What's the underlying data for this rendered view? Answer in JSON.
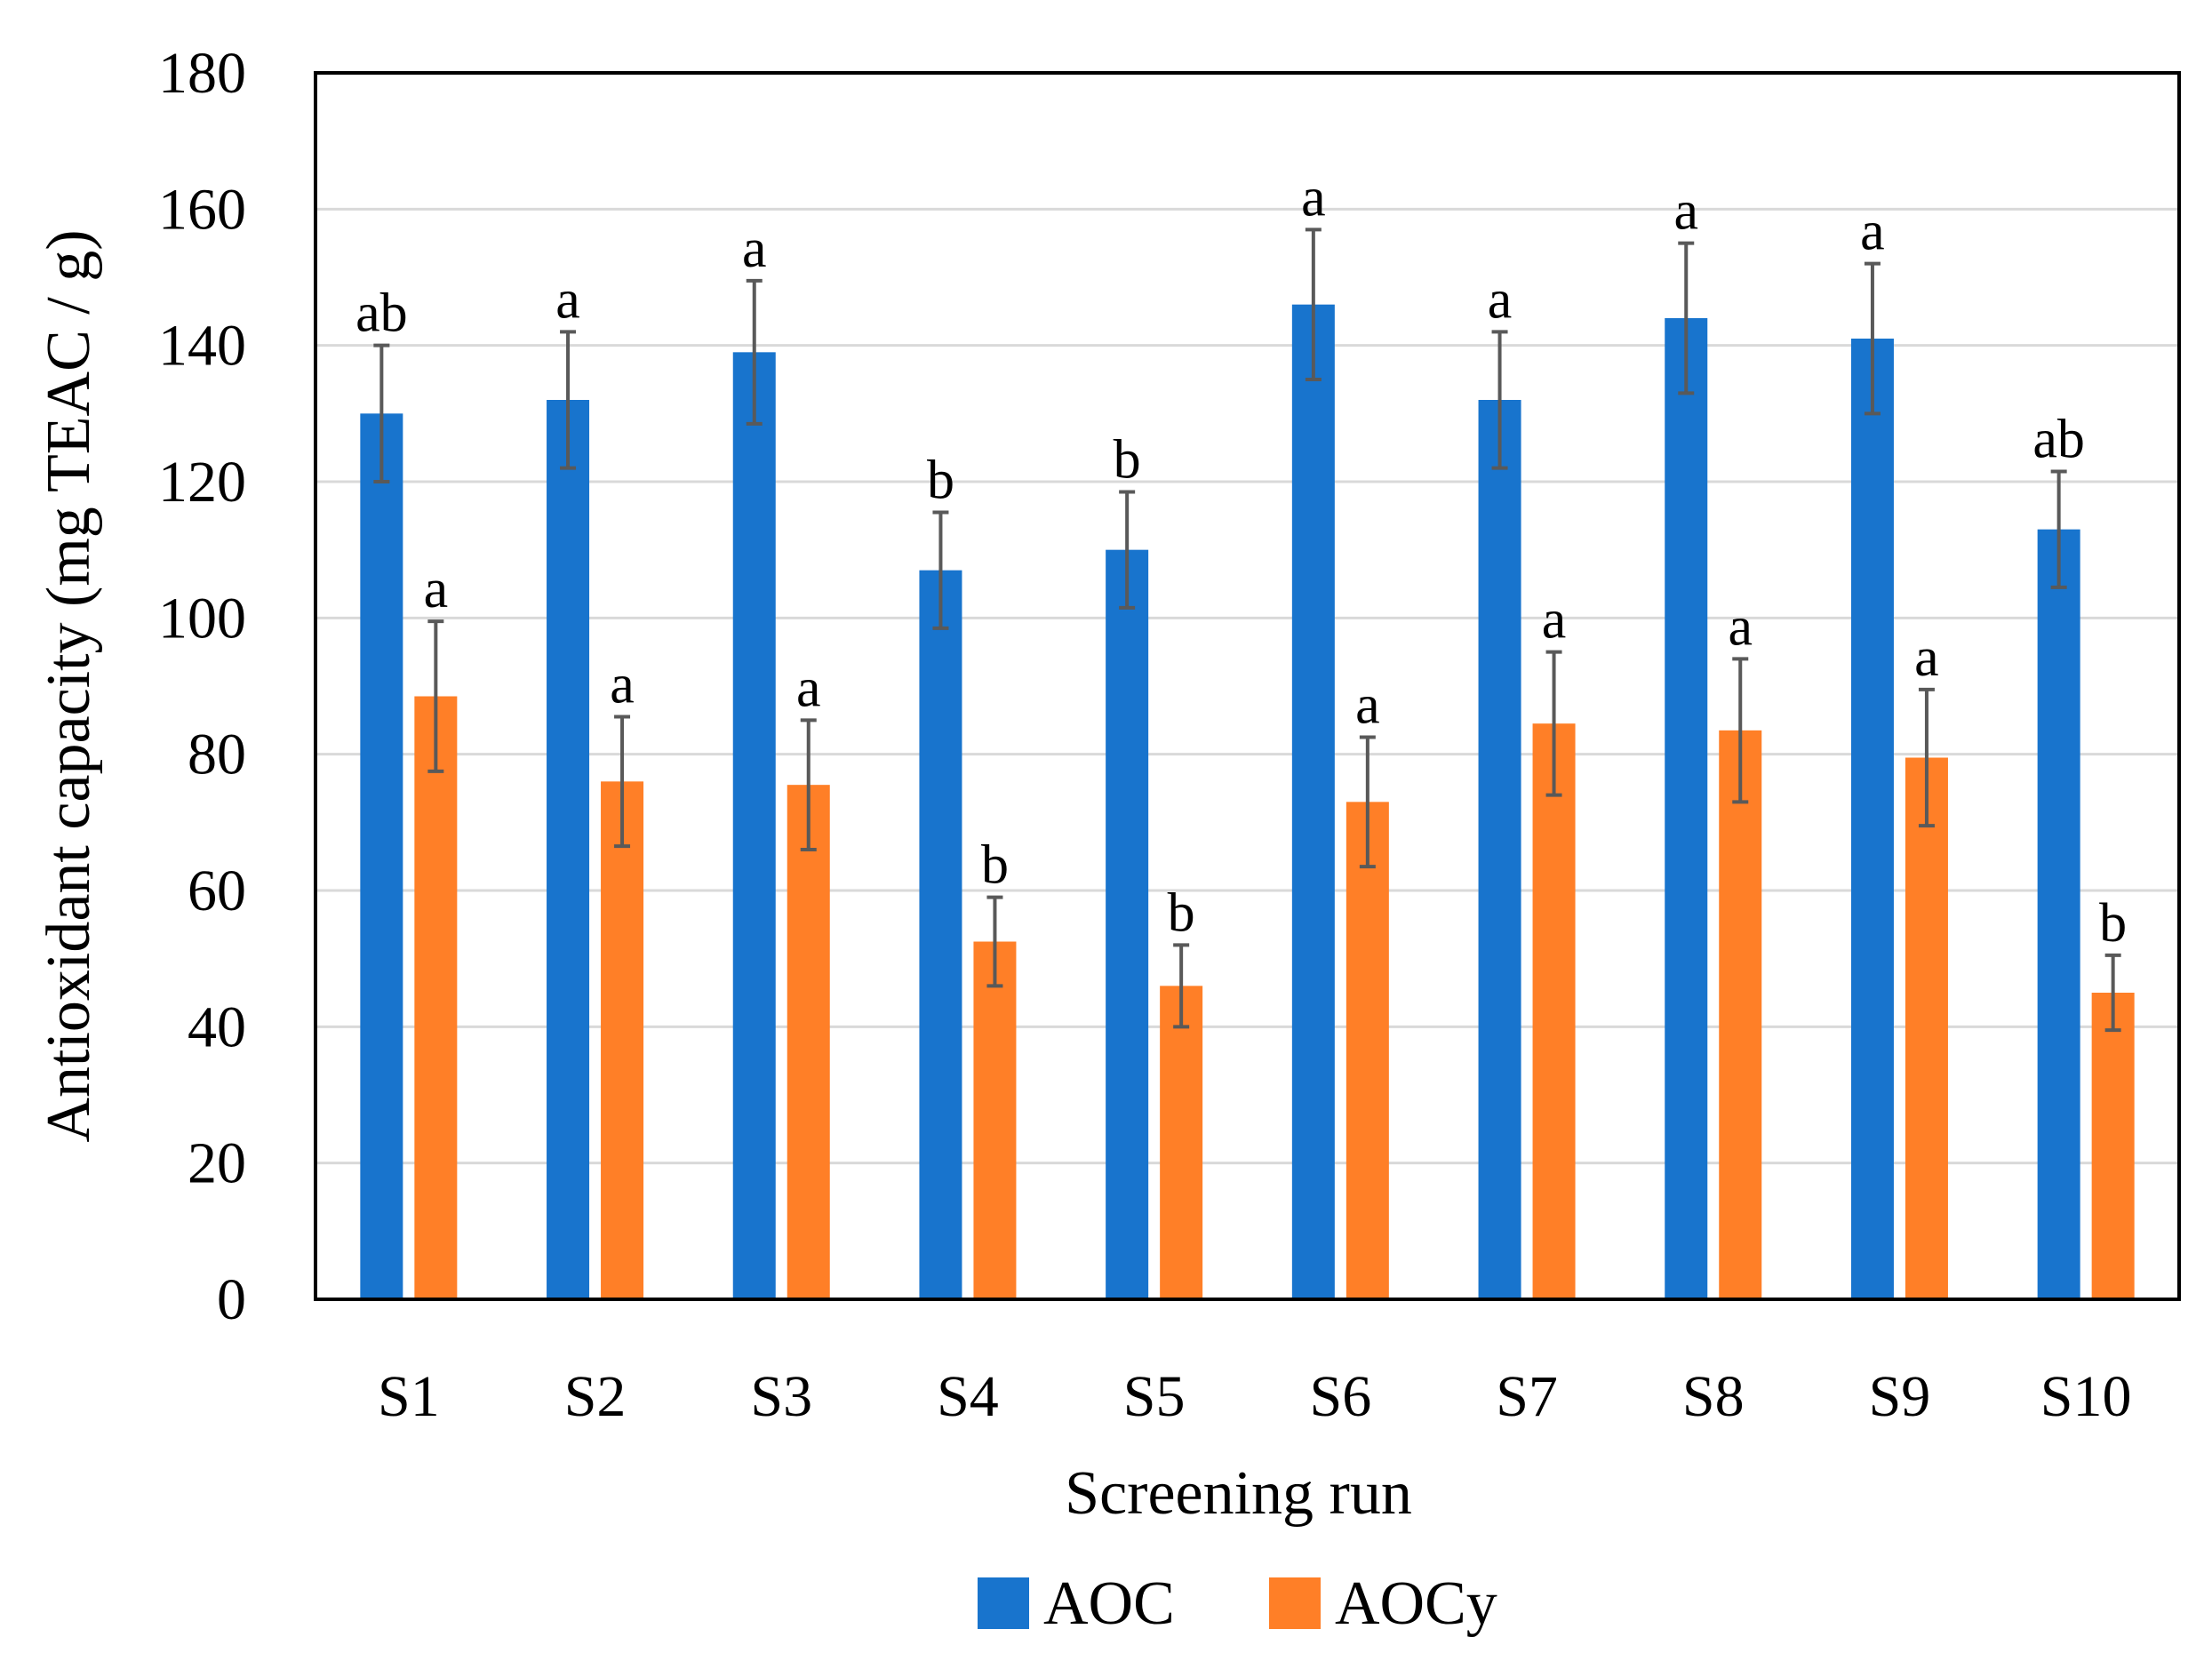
{
  "chart_data": {
    "type": "bar",
    "title": "",
    "xlabel": "Screening run",
    "ylabel": "Antioxidant capacity (mg TEAC / g)",
    "ylim": [
      0,
      180
    ],
    "yticks": [
      0,
      20,
      40,
      60,
      80,
      100,
      120,
      140,
      160,
      180
    ],
    "grid": true,
    "legend_position": "bottom",
    "categories": [
      "S1",
      "S2",
      "S3",
      "S4",
      "S5",
      "S6",
      "S7",
      "S8",
      "S9",
      "S10"
    ],
    "series": [
      {
        "name": "AOC",
        "color": "#1874CD",
        "values": [
          130,
          132,
          139,
          107,
          110,
          146,
          132,
          144,
          141,
          113
        ],
        "errors": [
          10,
          10,
          10.5,
          8.5,
          8.5,
          11,
          10,
          11,
          11,
          8.5
        ],
        "labels": [
          "ab",
          "a",
          "a",
          "b",
          "b",
          "a",
          "a",
          "a",
          "a",
          "ab"
        ]
      },
      {
        "name": "AOCy",
        "color": "#FF7F27",
        "values": [
          88.5,
          76,
          75.5,
          52.5,
          46,
          73,
          84.5,
          83.5,
          79.5,
          45
        ],
        "errors": [
          11,
          9.5,
          9.5,
          6.5,
          6,
          9.5,
          10.5,
          10.5,
          10,
          5.5
        ],
        "labels": [
          "a",
          "a",
          "a",
          "b",
          "b",
          "a",
          "a",
          "a",
          "a",
          "b"
        ]
      }
    ]
  }
}
